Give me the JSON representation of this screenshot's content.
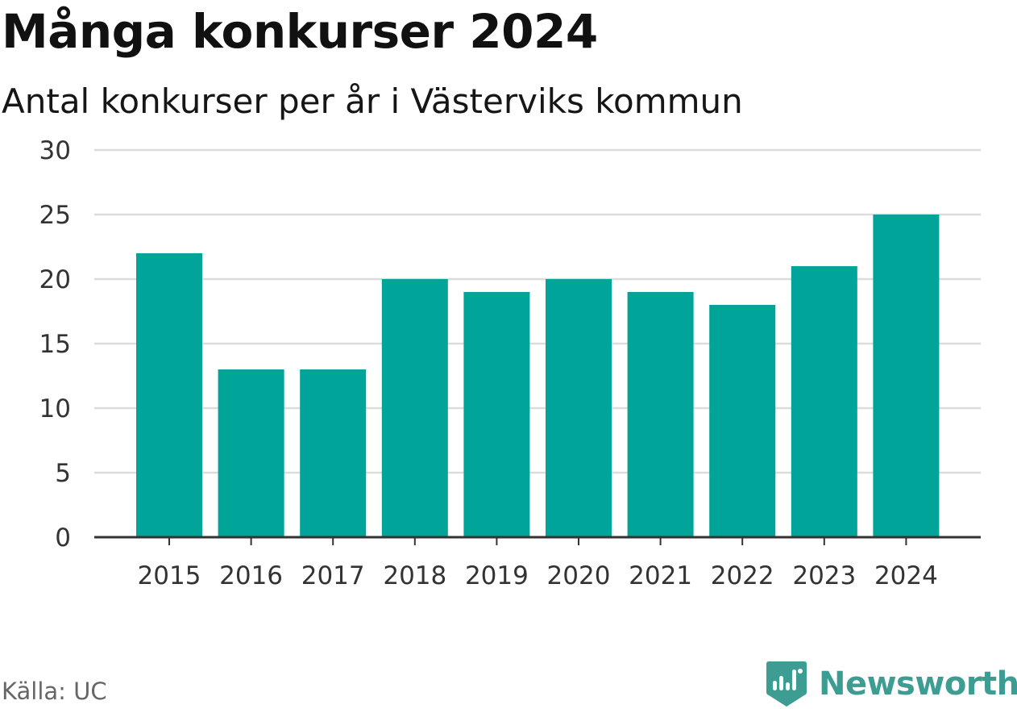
{
  "header": {
    "title": "Många konkurser 2024",
    "subtitle": "Antal konkurser per år i Västerviks kommun"
  },
  "footer": {
    "source": "Källa: UC",
    "brand": "Newsworthy"
  },
  "colors": {
    "bar": "#00A499",
    "brand": "#3E9D93",
    "grid": "#DCDCDC",
    "axis": "#333333"
  },
  "chart_data": {
    "type": "bar",
    "categories": [
      "2015",
      "2016",
      "2017",
      "2018",
      "2019",
      "2020",
      "2021",
      "2022",
      "2023",
      "2024"
    ],
    "values": [
      22,
      13,
      13,
      20,
      19,
      20,
      19,
      18,
      21,
      25
    ],
    "yticks": [
      "0",
      "5",
      "10",
      "15",
      "20",
      "25",
      "30"
    ],
    "ylim": [
      0,
      30
    ],
    "grid": true,
    "legend": "none"
  }
}
